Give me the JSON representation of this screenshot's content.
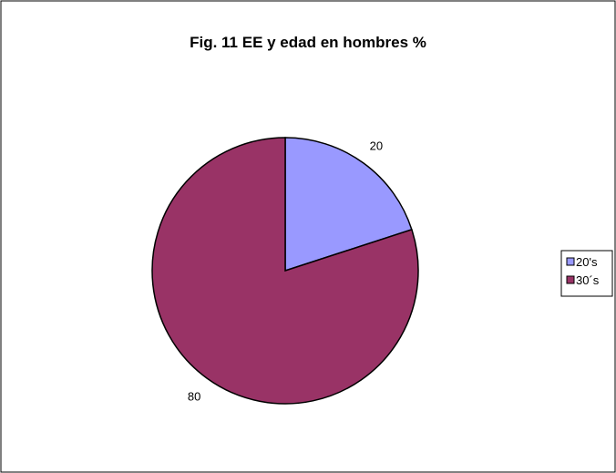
{
  "chart_data": {
    "type": "pie",
    "title": "Fig. 11 EE y edad en hombres %",
    "categories": [
      "20's",
      "30´s"
    ],
    "values": [
      20,
      80
    ],
    "data_labels": [
      "20",
      "80"
    ],
    "colors": [
      "#9999ff",
      "#993366"
    ],
    "legend": {
      "placement": "right",
      "entries": [
        "20's",
        "30´s"
      ]
    },
    "start_angle_deg": 0,
    "direction": "clockwise",
    "grid": false
  },
  "style": {
    "background": "#ffffff",
    "border_color": "#000000",
    "slice_stroke": "#000000"
  }
}
